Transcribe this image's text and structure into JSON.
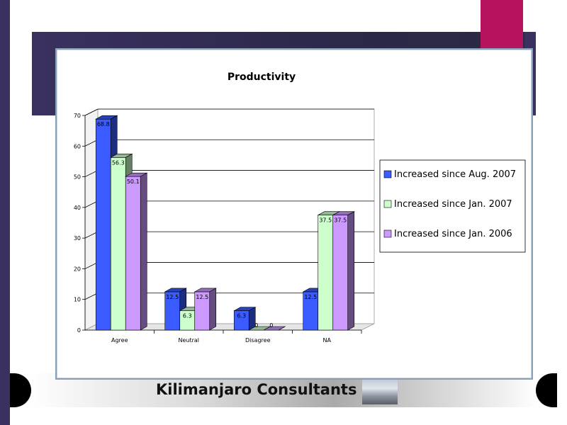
{
  "footer": {
    "company": "Kilimanjaro Consultants"
  },
  "colors": {
    "accent": "#b5135e",
    "band": "#3b3160"
  },
  "chart_data": {
    "type": "bar",
    "title": "Productivity",
    "categories": [
      "Agree",
      "Neutral",
      "Disagree",
      "NA"
    ],
    "series": [
      {
        "name": "Increased since Aug. 2007",
        "color": "#3a5bff",
        "values": [
          68.8,
          12.5,
          6.3,
          12.5
        ],
        "labels": [
          "68.8",
          "12.5",
          "6.3",
          "12.5"
        ]
      },
      {
        "name": "Increased since Jan. 2007",
        "color": "#ccffcc",
        "values": [
          56.3,
          6.3,
          0,
          37.5
        ],
        "labels": [
          "56.3",
          "6.3",
          "0",
          "37.5"
        ]
      },
      {
        "name": "Increased since Jan. 2006",
        "color": "#cc99ff",
        "values": [
          50.1,
          12.5,
          0,
          37.5
        ],
        "labels": [
          "50.1",
          "12.5",
          "0",
          "37.5"
        ]
      }
    ],
    "ylim": [
      0,
      70
    ],
    "yticks": [
      0,
      10,
      20,
      30,
      40,
      50,
      60,
      70
    ],
    "legend_position": "right",
    "grid": true
  }
}
